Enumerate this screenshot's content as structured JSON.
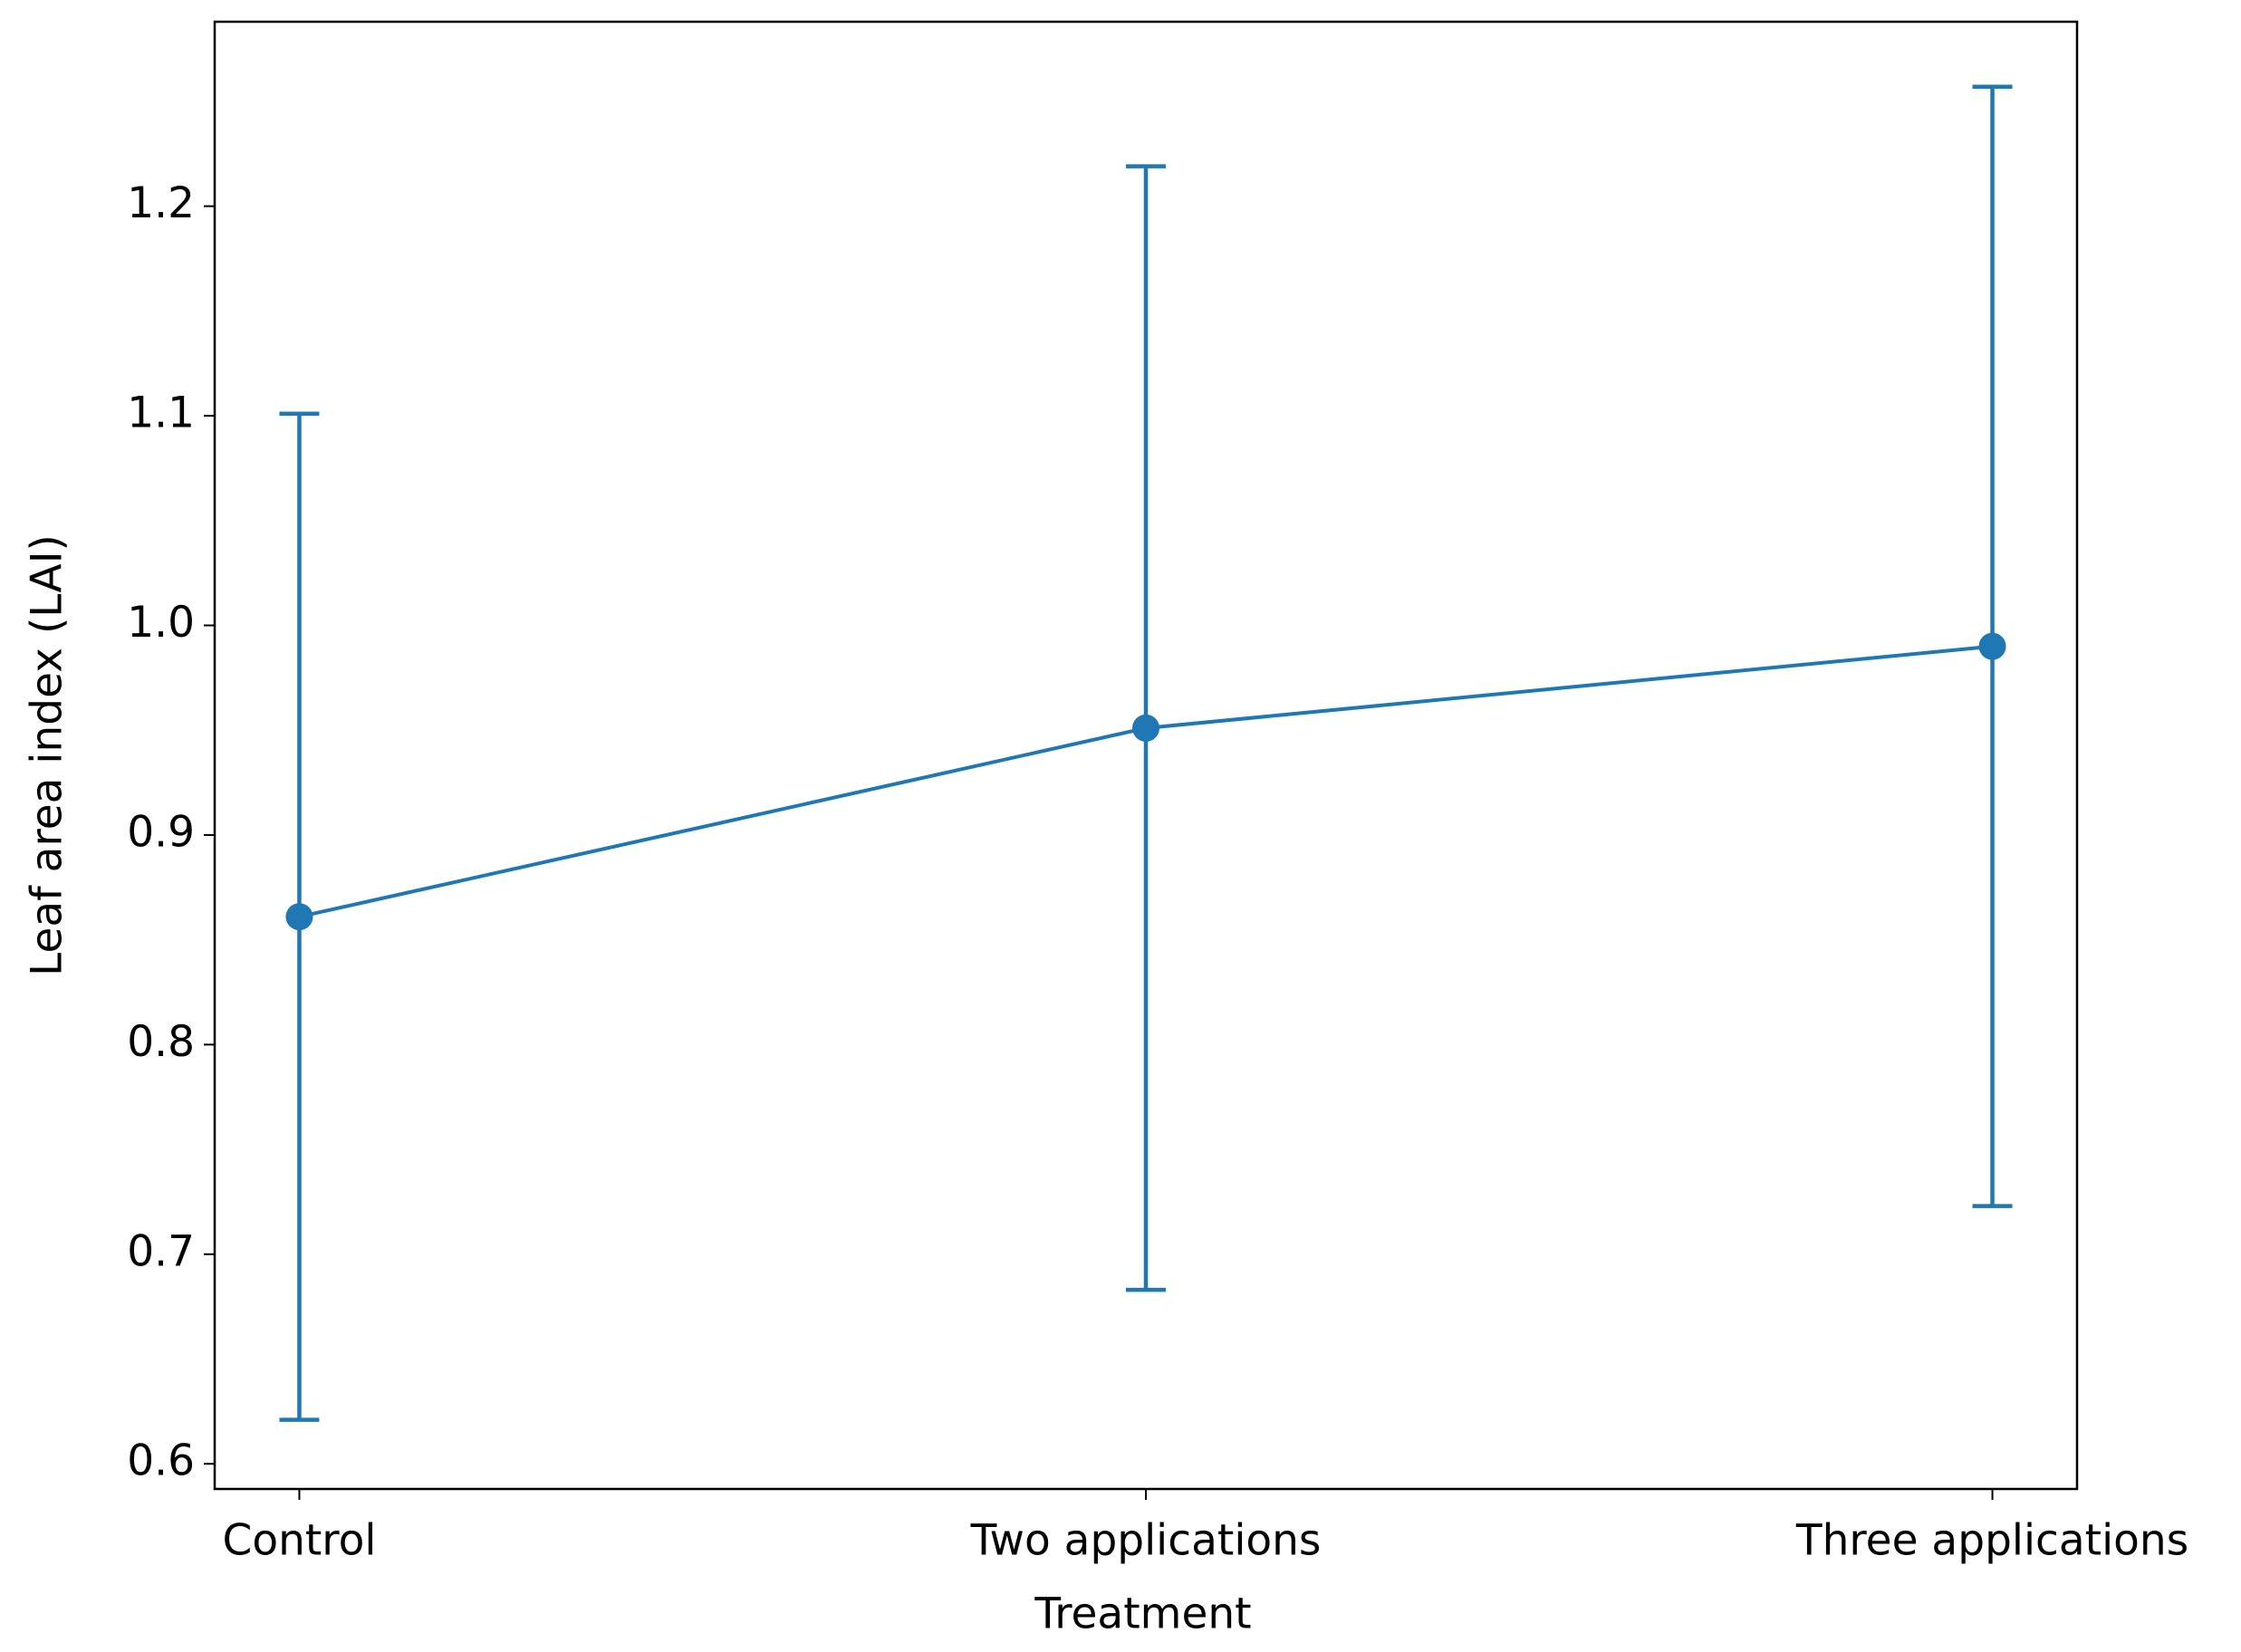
{
  "chart_data": {
    "type": "line",
    "x_label": "Treatment",
    "y_label": "Leaf area index (LAI)",
    "categories": [
      "Control",
      "Two applications",
      "Three applications"
    ],
    "series": [
      {
        "color": "#1f77b4",
        "values": [
          0.861,
          0.951,
          0.99
        ],
        "errors": [
          0.24,
          0.268,
          0.267
        ]
      }
    ],
    "ylim": [
      0.588,
      1.288
    ],
    "yticks": [
      {
        "value": 0.6,
        "label": "0.6"
      },
      {
        "value": 0.7,
        "label": "0.7"
      },
      {
        "value": 0.8,
        "label": "0.8"
      },
      {
        "value": 0.9,
        "label": "0.9"
      },
      {
        "value": 1.0,
        "label": "1.0"
      },
      {
        "value": 1.1,
        "label": "1.1"
      },
      {
        "value": 1.2,
        "label": "1.2"
      }
    ],
    "grid": false
  }
}
